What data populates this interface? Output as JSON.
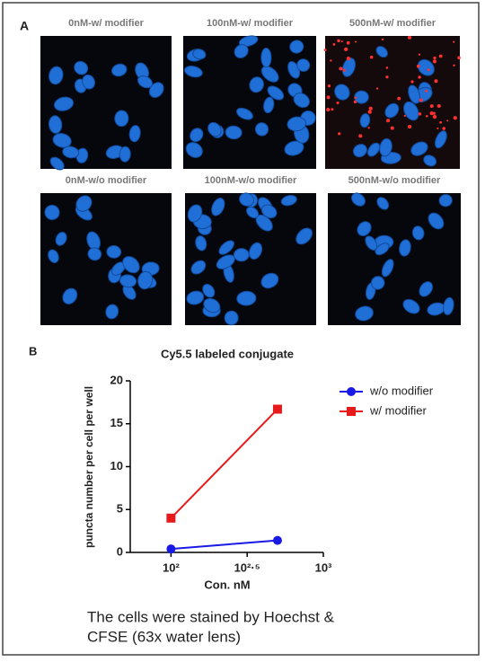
{
  "panel_a": {
    "label": "A",
    "images": [
      {
        "caption": "0nM-w/ modifier"
      },
      {
        "caption": "100nM-w/ modifier"
      },
      {
        "caption": "500nM-w/ modifier"
      },
      {
        "caption": "0nM-w/o modifier"
      },
      {
        "caption": "100nM-w/o modifier"
      },
      {
        "caption": "500nM-w/o modifier"
      }
    ]
  },
  "panel_b": {
    "label": "B"
  },
  "chart_data": {
    "type": "line",
    "title": "Cy5.5 labeled conjugate",
    "x_label": "Con. nM",
    "y_label": "puncta number per cell per well",
    "x": [
      100,
      500
    ],
    "xscale": "log",
    "xlim": [
      54,
      1000
    ],
    "xticks": [
      {
        "value": 100,
        "label": "10²"
      },
      {
        "value": 316.2,
        "label": "10²·⁵"
      },
      {
        "value": 1000,
        "label": "10³"
      }
    ],
    "ylim": [
      0,
      20
    ],
    "yticks": [
      0,
      5,
      10,
      15,
      20
    ],
    "legend": "top-right",
    "series": [
      {
        "name": "w/o modifier",
        "color": "#1a1ae6",
        "marker": "circle",
        "values": [
          0.4,
          1.4
        ]
      },
      {
        "name": "w/ modifier",
        "color": "#e61a1a",
        "marker": "square",
        "values": [
          4,
          16.7
        ]
      }
    ]
  },
  "caption": {
    "lines": [
      "The cells were stained by Hoechst &",
      "CFSE (63x water lens)"
    ]
  }
}
